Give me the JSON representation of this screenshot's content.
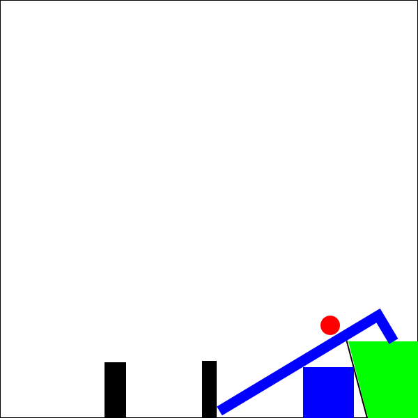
{
  "scene": {
    "background": "#ffffff",
    "border_color": "#000000",
    "colors": {
      "static": "#000000",
      "dynamic_blue": "#0000ff",
      "ball": "#ff0000",
      "goal": "#00ff00"
    },
    "objects": [
      {
        "name": "left-black-post",
        "kind": "static",
        "color": "#000000",
        "interactable": false
      },
      {
        "name": "right-black-post",
        "kind": "static",
        "color": "#000000",
        "interactable": false
      },
      {
        "name": "blue-hooked-ramp",
        "kind": "dynamic",
        "color": "#0000ff",
        "interactable": true
      },
      {
        "name": "blue-square-block",
        "kind": "dynamic",
        "color": "#0000ff",
        "interactable": true
      },
      {
        "name": "red-ball",
        "kind": "dynamic",
        "color": "#ff0000",
        "interactable": true
      },
      {
        "name": "green-goal-cup",
        "kind": "goal",
        "color": "#00ff00",
        "interactable": false
      },
      {
        "name": "black-thin-line",
        "kind": "static",
        "color": "#000000",
        "interactable": false
      }
    ]
  }
}
